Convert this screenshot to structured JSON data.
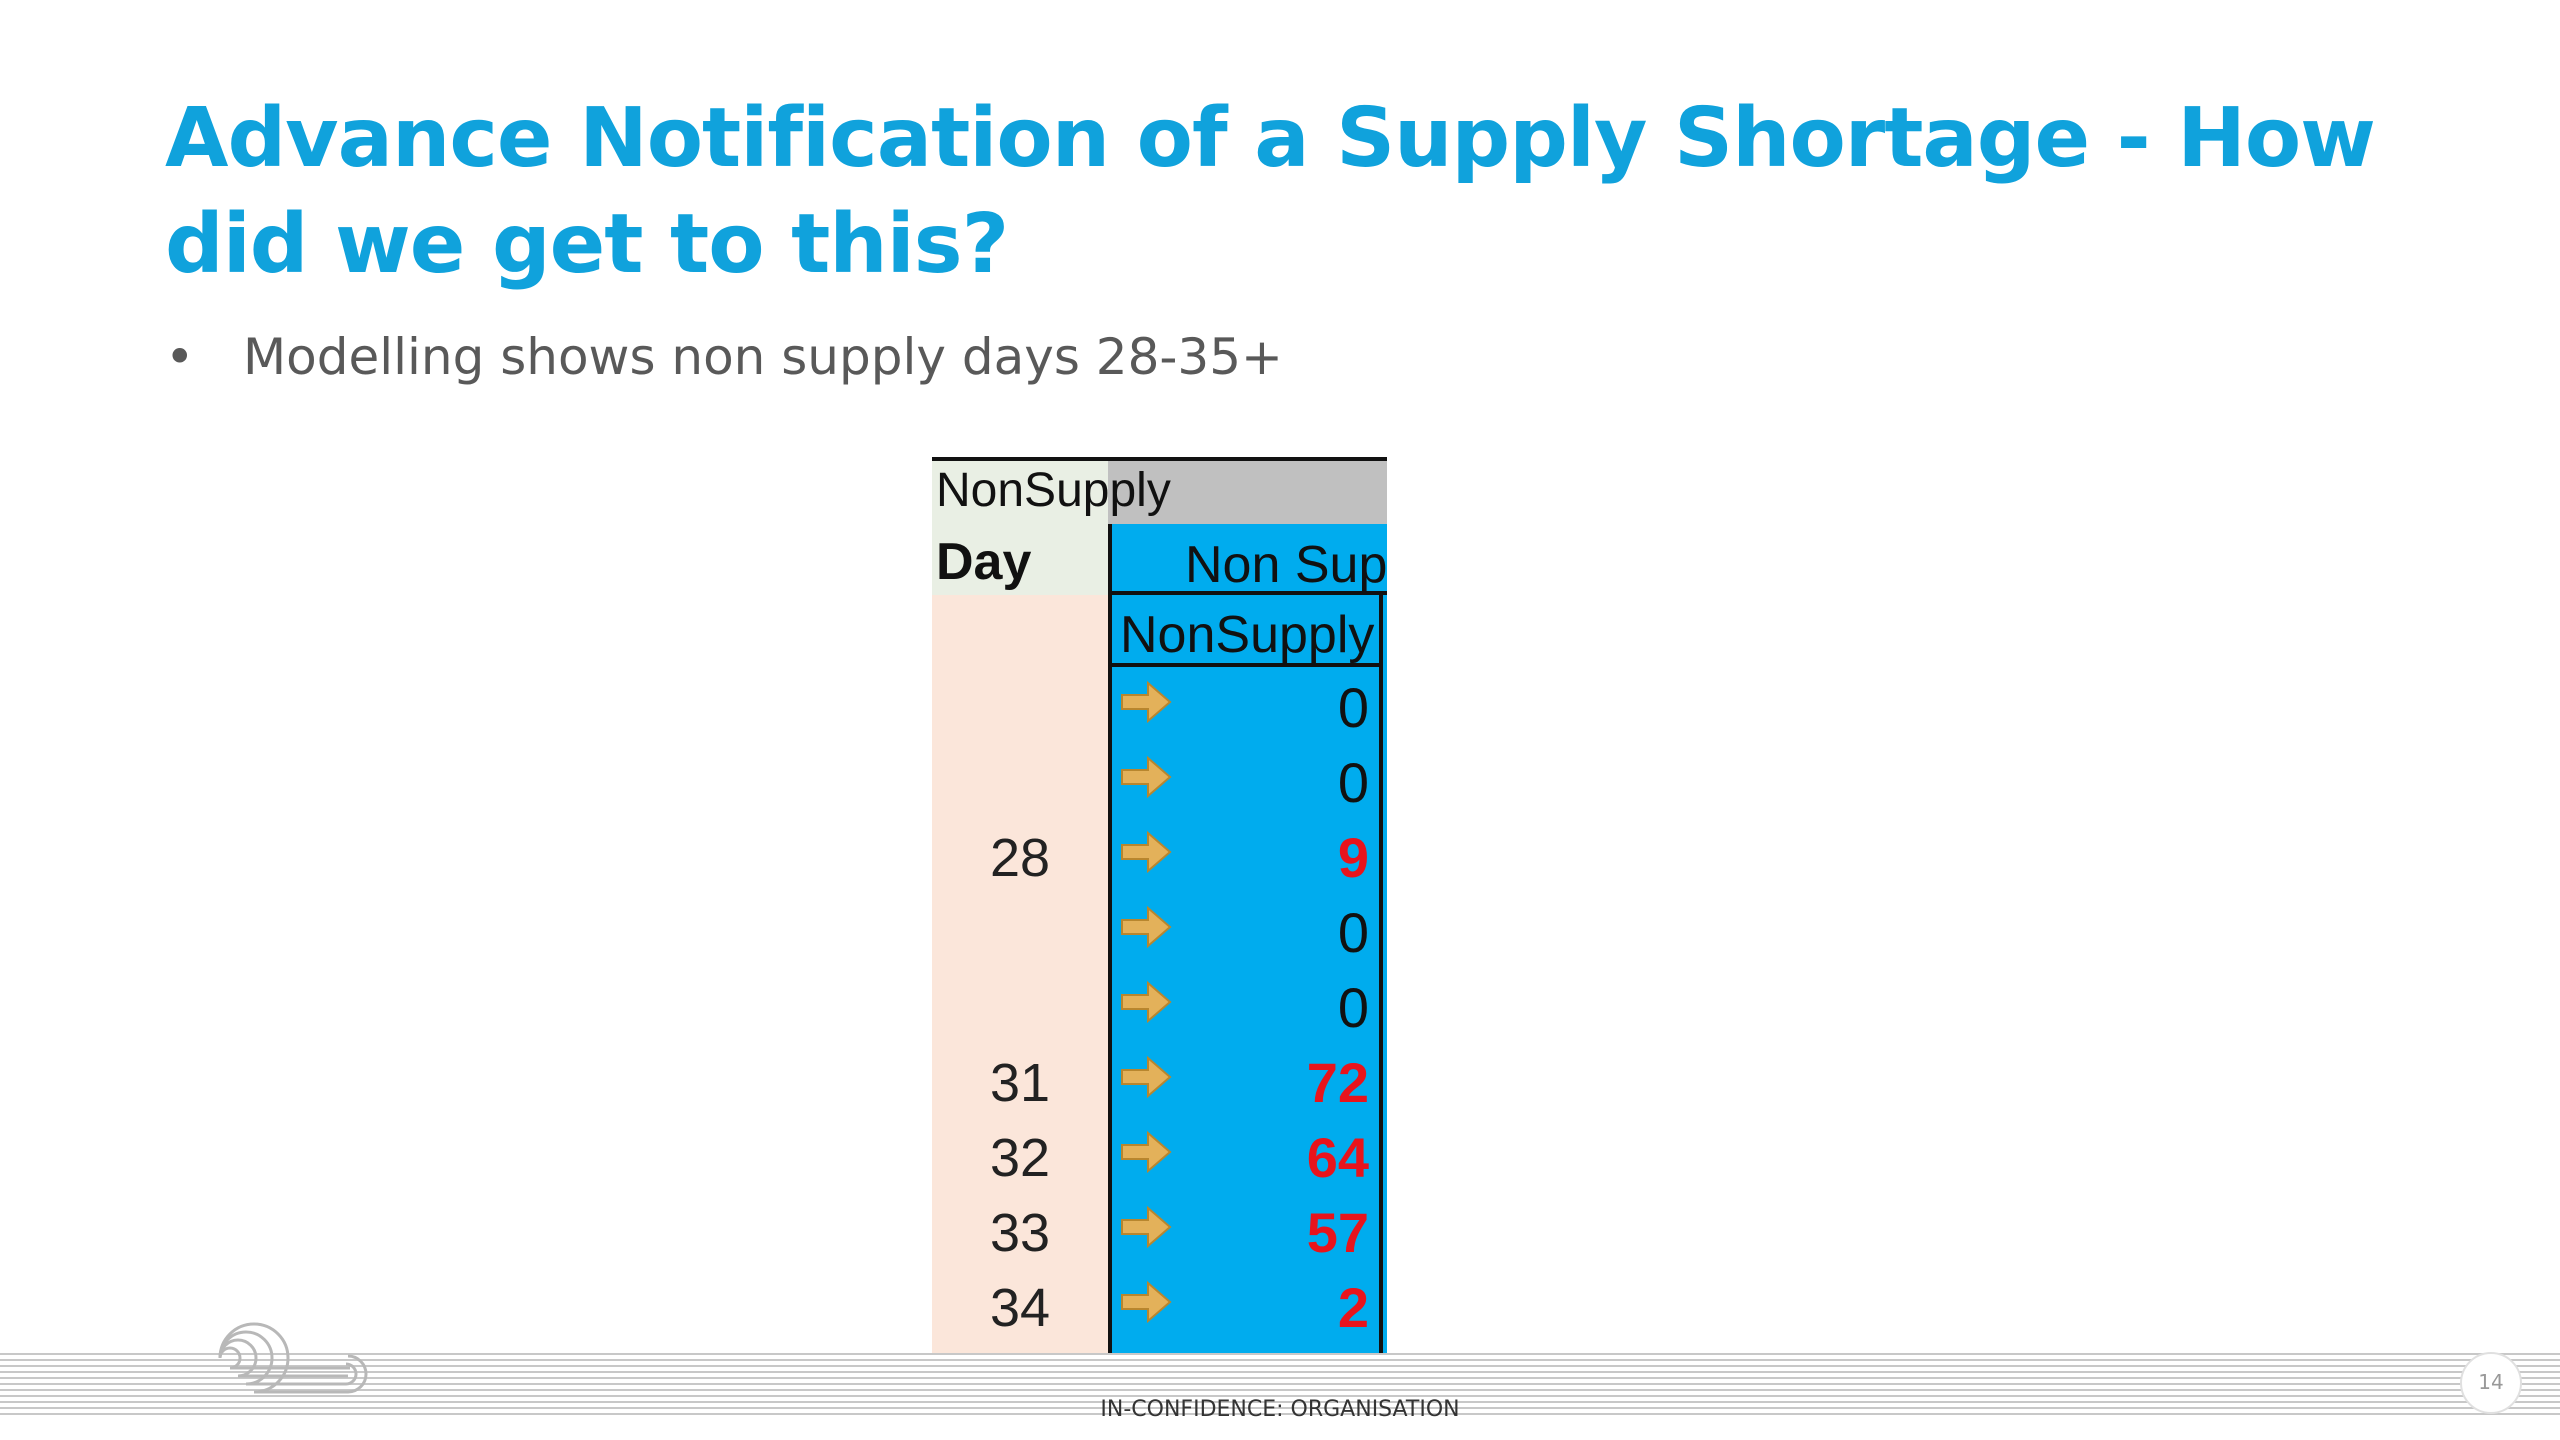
{
  "slide": {
    "title": "Advance Notification of a Supply Shortage - How did we get to this?",
    "bullet_symbol": "•",
    "bullet": "Modelling shows non supply days 28-35+"
  },
  "table": {
    "sheet_header": "NonSupply",
    "day_header": "Day",
    "column_header": "Non Sup",
    "column_subheader": "NonSupply",
    "arrow_icon": "right-arrow-icon",
    "arrow_color": "#e3b15a",
    "highlight_color": "#e8141c",
    "column_color": "#00acee",
    "rows": [
      {
        "day": "",
        "value": "0"
      },
      {
        "day": "",
        "value": "0"
      },
      {
        "day": "28",
        "value": "9"
      },
      {
        "day": "",
        "value": "0"
      },
      {
        "day": "",
        "value": "0"
      },
      {
        "day": "31",
        "value": "72"
      },
      {
        "day": "32",
        "value": "64"
      },
      {
        "day": "33",
        "value": "57"
      },
      {
        "day": "34",
        "value": "2"
      }
    ]
  },
  "footer": {
    "classification": "IN-CONFIDENCE: ORGANISATION",
    "page_number": "14"
  }
}
